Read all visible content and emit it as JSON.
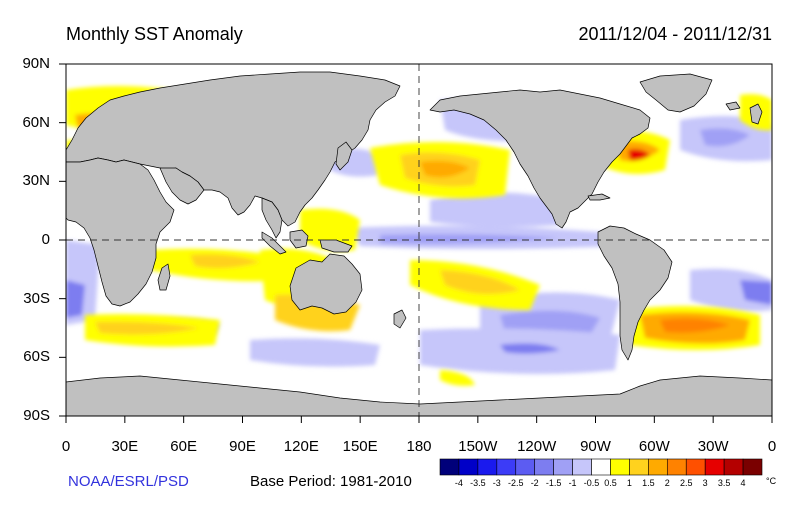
{
  "header": {
    "title": "Monthly SST Anomaly",
    "date_range": "2011/12/04 - 2011/12/31"
  },
  "axes": {
    "lat_labels": [
      "90N",
      "60N",
      "30N",
      "0",
      "30S",
      "60S",
      "90S"
    ],
    "lon_labels": [
      "0",
      "30E",
      "60E",
      "90E",
      "120E",
      "150E",
      "180",
      "150W",
      "120W",
      "90W",
      "60W",
      "30W",
      "0"
    ]
  },
  "footer": {
    "credit": "NOAA/ESRL/PSD",
    "base_period": "Base Period: 1981-2010"
  },
  "colorbar": {
    "labels": [
      "-4",
      "-3.5",
      "-3",
      "-2.5",
      "-2",
      "-1.5",
      "-1",
      "-0.5",
      "0.5",
      "1",
      "1.5",
      "2",
      "2.5",
      "3",
      "3.5",
      "4"
    ],
    "unit": "°C",
    "colors": [
      "#00007a",
      "#0000c8",
      "#1a1aee",
      "#3c3cf7",
      "#5c5cf2",
      "#7d7df0",
      "#a0a0f5",
      "#c6c6fa",
      "#ffffff",
      "#ffff00",
      "#ffd21e",
      "#ffaa00",
      "#ff8200",
      "#ff5000",
      "#e60000",
      "#b40000",
      "#7a0000"
    ]
  },
  "map": {
    "land_color": "#c0c0c0",
    "reference_lines": [
      "equator",
      "dateline"
    ]
  }
}
